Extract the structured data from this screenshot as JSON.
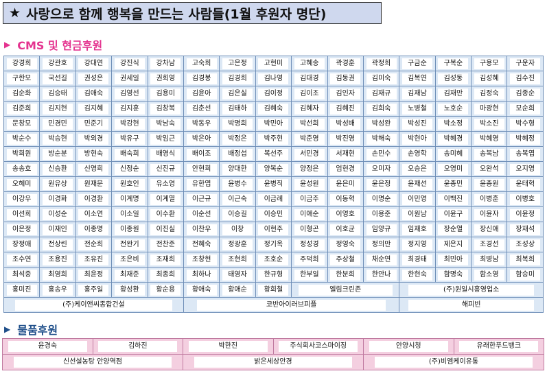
{
  "title": {
    "star": "★",
    "text": "사랑으로 함께 행복을 만드는 사람들(1월 후원자 명단)"
  },
  "sections": {
    "cms": {
      "marker": "▶",
      "label": "CMS 및 현금후원"
    },
    "goods": {
      "marker": "▶",
      "label": "물품후원"
    }
  },
  "cms_rows": [
    [
      "강경희",
      "강관호",
      "강대연",
      "강진식",
      "강차남",
      "고숙희",
      "고은정",
      "고현미",
      "고혜송",
      "곽경훈",
      "곽정희",
      "구금순",
      "구복순",
      "구용모",
      "구운자"
    ],
    [
      "구한모",
      "국선길",
      "권성은",
      "권세일",
      "권회영",
      "김경봉",
      "김경희",
      "김나영",
      "김대경",
      "김동권",
      "김미숙",
      "김복연",
      "김성동",
      "김성혜",
      "김수진"
    ],
    [
      "김순화",
      "김승태",
      "김애숙",
      "김영선",
      "김용미",
      "김윤아",
      "김은실",
      "김이정",
      "김이조",
      "김인자",
      "김재규",
      "김재남",
      "김재만",
      "김정숙",
      "김종순"
    ],
    [
      "김준희",
      "김지현",
      "김지혜",
      "김지훈",
      "김창복",
      "김춘선",
      "김태하",
      "김혜숙",
      "김혜자",
      "김혜진",
      "김희숙",
      "노병철",
      "노호순",
      "마광현",
      "모순희"
    ],
    [
      "문창모",
      "민경민",
      "민준기",
      "박강현",
      "박남숙",
      "박동우",
      "박명희",
      "박민아",
      "박선희",
      "박성배",
      "박성완",
      "박성진",
      "박소정",
      "박소진",
      "박수형"
    ],
    [
      "박순수",
      "박승현",
      "박외경",
      "박유구",
      "박임근",
      "박은아",
      "박정은",
      "박주현",
      "박준영",
      "박진영",
      "박해숙",
      "박현아",
      "박혜경",
      "박혜영",
      "박혜정"
    ],
    [
      "박희원",
      "방순분",
      "방현숙",
      "배숙희",
      "배영식",
      "배이조",
      "배정섭",
      "복선주",
      "서민경",
      "서재현",
      "손민수",
      "손영학",
      "송미혜",
      "송복남",
      "송복엽"
    ],
    [
      "송송호",
      "신승환",
      "신영희",
      "신정순",
      "신진규",
      "안현희",
      "양대한",
      "양복순",
      "양정은",
      "엄현경",
      "오미자",
      "오승은",
      "오영미",
      "오완석",
      "오지영"
    ],
    [
      "오혜미",
      "원유상",
      "원재문",
      "원호인",
      "유소영",
      "유한엽",
      "윤병수",
      "윤병직",
      "윤성원",
      "윤은미",
      "윤은정",
      "윤재선",
      "윤종민",
      "윤종원",
      "윤태혁"
    ],
    [
      "이강우",
      "이경화",
      "이경환",
      "이계명",
      "이계열",
      "이근규",
      "이근숙",
      "이금례",
      "이금주",
      "이동혁",
      "이명순",
      "이민영",
      "이백진",
      "이병훈",
      "이병호"
    ],
    [
      "이선희",
      "이성순",
      "이소연",
      "이소일",
      "이수환",
      "이순선",
      "이승길",
      "이승민",
      "이애순",
      "이영호",
      "이용준",
      "이원남",
      "이윤구",
      "이윤자",
      "이윤정"
    ],
    [
      "이은정",
      "이재인",
      "이종명",
      "이종원",
      "이진실",
      "이찬우",
      "이창",
      "이현주",
      "이형곤",
      "이호균",
      "임양규",
      "임재호",
      "장순열",
      "장신애",
      "장재석"
    ],
    [
      "장정애",
      "전상린",
      "전순희",
      "전완기",
      "전찬준",
      "전혜숙",
      "정광훈",
      "정기옥",
      "정성경",
      "정영숙",
      "정의만",
      "정지영",
      "제은지",
      "조경선",
      "조성상"
    ],
    [
      "조수연",
      "조용진",
      "조유진",
      "조은비",
      "조재희",
      "조창현",
      "조현희",
      "조호순",
      "주덕희",
      "주상철",
      "채순연",
      "최경태",
      "최민아",
      "최병남",
      "최복희"
    ],
    [
      "최석중",
      "최영희",
      "최윤정",
      "최재준",
      "최종희",
      "최하나",
      "태영자",
      "한규형",
      "한부일",
      "한분희",
      "한안나",
      "한현숙",
      "함명숙",
      "함소영",
      "함승미"
    ]
  ],
  "cms_row15": [
    "홍미진",
    "홍송우",
    "홍주일",
    "황성환",
    "황순용",
    "황애숙",
    "황애순",
    "황회철"
  ],
  "cms_row15_wide": [
    "엘림크린존",
    "(주)원일시흥영업소"
  ],
  "cms_row16": [
    "(주)케이앤씨종합건설",
    "코반아이러브피플",
    "해피빈"
  ],
  "goods_row1": [
    "윤경숙",
    "김하진",
    "박한진",
    "주식회사코스마이징",
    "안양시청",
    "유래한푸드뱅크"
  ],
  "goods_row2": [
    "신선설농탕 안양역점",
    "밝은세상안경",
    "(주)비엠케이유통"
  ]
}
